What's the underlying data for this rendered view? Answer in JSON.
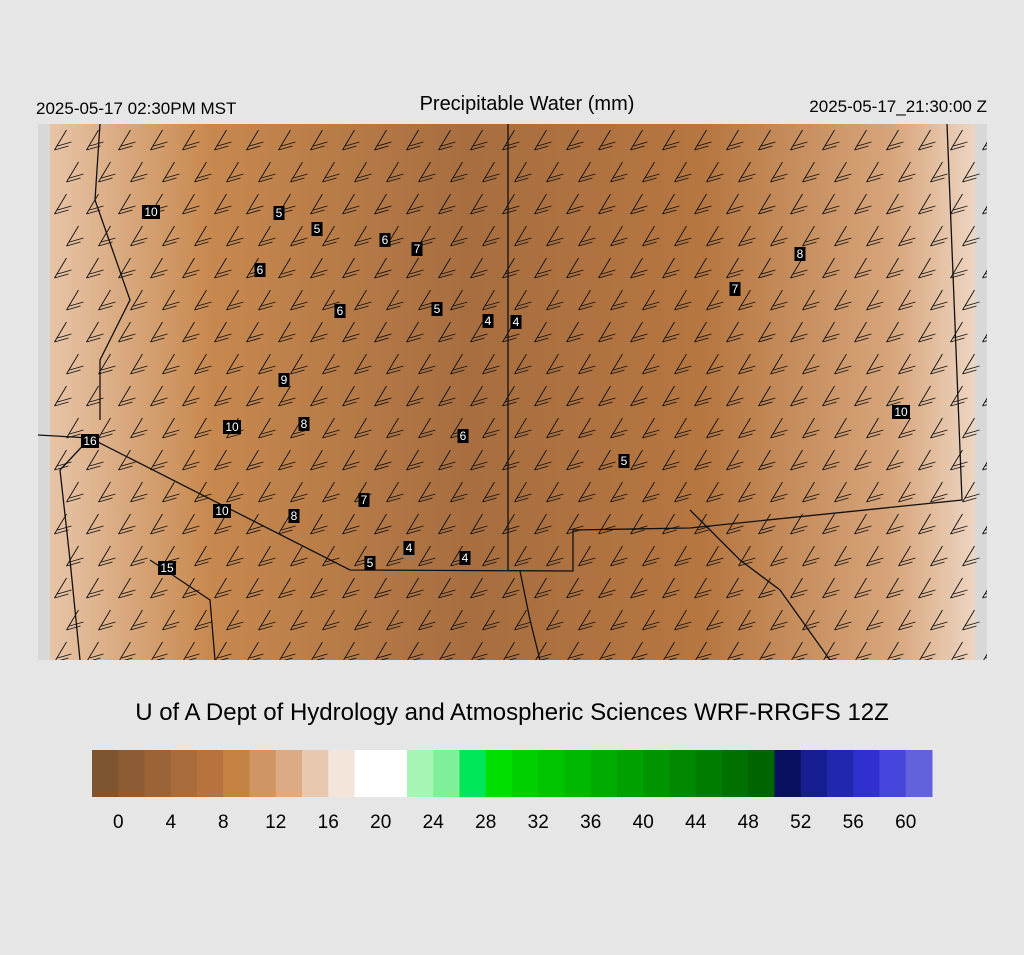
{
  "header": {
    "left": "2025-05-17 02:30PM MST",
    "title": "Precipitable Water (mm)",
    "right": "2025-05-17_21:30:00 Z"
  },
  "map": {
    "station_labels": [
      "10",
      "5",
      "5",
      "6",
      "7",
      "6",
      "6",
      "5",
      "4",
      "4",
      "8",
      "7",
      "9",
      "8",
      "10",
      "6",
      "5",
      "10",
      "16",
      "10",
      "8",
      "7",
      "4",
      "4",
      "5",
      "15"
    ]
  },
  "credit": "U of A Dept of Hydrology and Atmospheric Sciences WRF-RRGFS 12Z",
  "colorbar": {
    "lim": [
      -2,
      62
    ],
    "colors": [
      "#7f5531",
      "#8d5c34",
      "#9a6337",
      "#a86b3b",
      "#b6733e",
      "#c58245",
      "#d09564",
      "#dbab85",
      "#e8c9af",
      "#f3e5da",
      "#ffffff",
      "#ffffff",
      "#a5f5b5",
      "#7ff09a",
      "#00e65a",
      "#00df00",
      "#00d000",
      "#00c400",
      "#00b800",
      "#00ac00",
      "#00a000",
      "#009400",
      "#008800",
      "#007c00",
      "#007000",
      "#006400",
      "#0a1060",
      "#161d90",
      "#2227b0",
      "#3030d0",
      "#4646dc",
      "#6262dc"
    ],
    "ticks": [
      0,
      4,
      8,
      12,
      16,
      20,
      24,
      28,
      32,
      36,
      40,
      44,
      48,
      52,
      56,
      60
    ]
  }
}
